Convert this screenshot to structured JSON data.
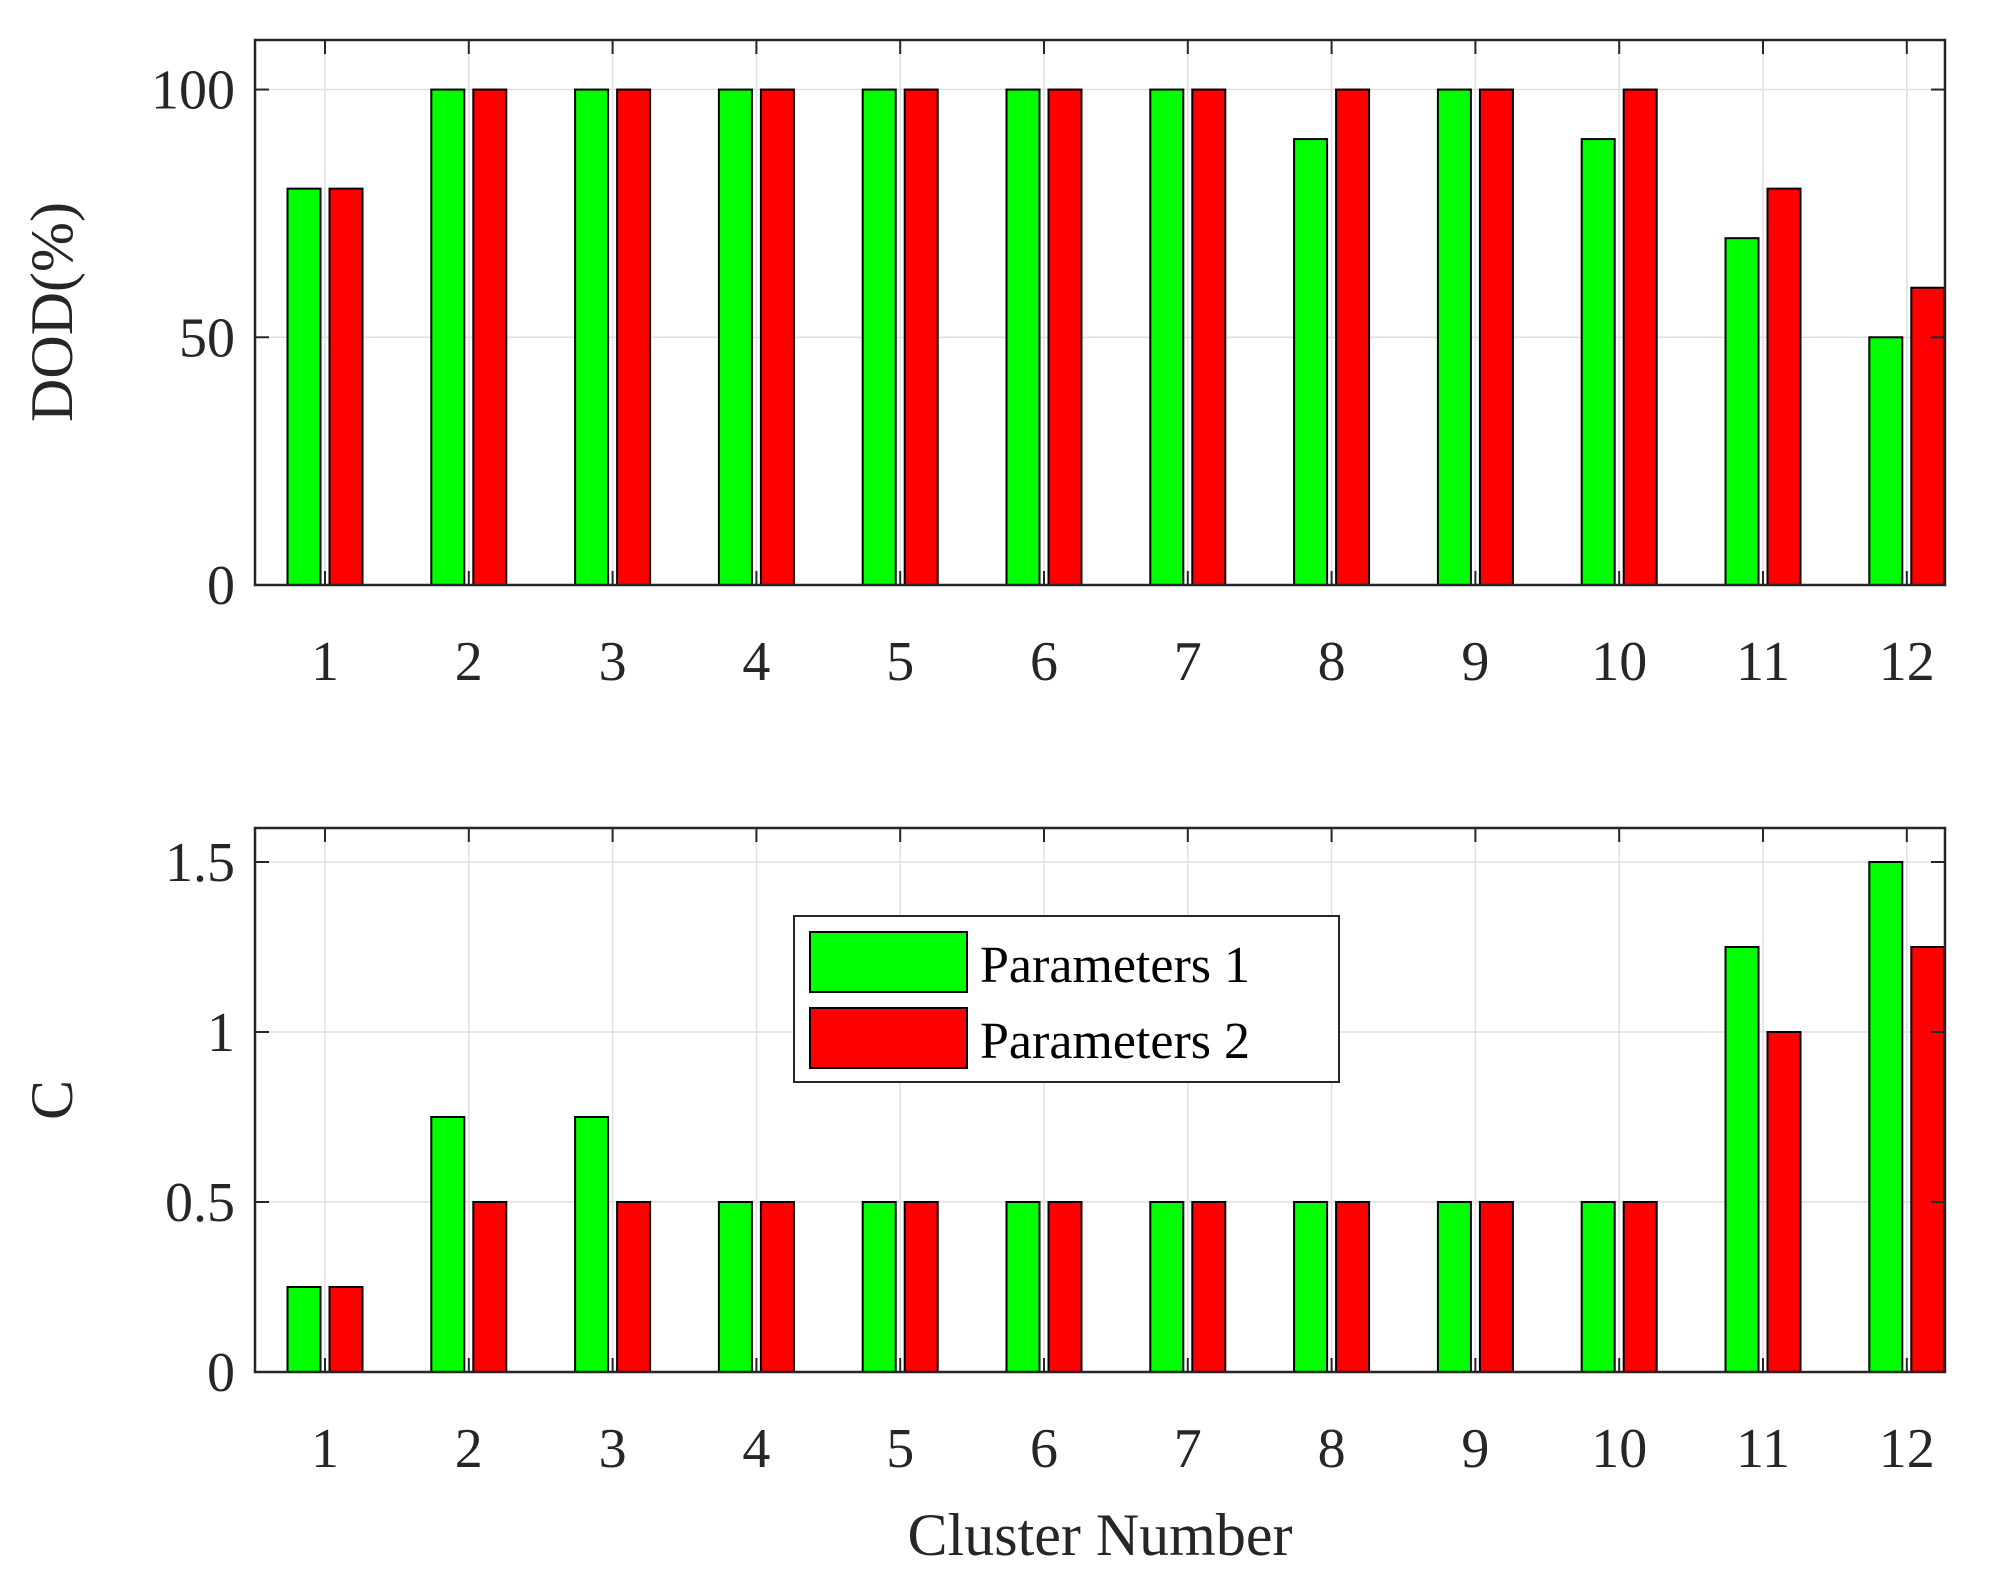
{
  "colors": {
    "series1": "#00FF00",
    "series2": "#FF0000",
    "grid": "#DFDFDF",
    "axis": "#262626"
  },
  "legend": {
    "entries": [
      "Parameters 1",
      "Parameters 2"
    ],
    "placement": "center"
  },
  "chart_data": [
    {
      "type": "bar",
      "title": "",
      "xlabel": "",
      "ylabel": "DOD(%)",
      "categories": [
        "1",
        "2",
        "3",
        "4",
        "5",
        "6",
        "7",
        "8",
        "9",
        "10",
        "11",
        "12"
      ],
      "ylim": [
        0,
        110
      ],
      "yticks": [
        0,
        50,
        100
      ],
      "ytick_labels": [
        "0",
        "50",
        "100"
      ],
      "grid": true,
      "series": [
        {
          "name": "Parameters 1",
          "values": [
            80,
            100,
            100,
            100,
            100,
            100,
            100,
            90,
            100,
            90,
            70,
            50
          ]
        },
        {
          "name": "Parameters 2",
          "values": [
            80,
            100,
            100,
            100,
            100,
            100,
            100,
            100,
            100,
            100,
            80,
            60
          ]
        }
      ]
    },
    {
      "type": "bar",
      "title": "",
      "xlabel": "Cluster Number",
      "ylabel": "C",
      "categories": [
        "1",
        "2",
        "3",
        "4",
        "5",
        "6",
        "7",
        "8",
        "9",
        "10",
        "11",
        "12"
      ],
      "ylim": [
        0,
        1.6
      ],
      "yticks": [
        0,
        0.5,
        1,
        1.5
      ],
      "ytick_labels": [
        "0",
        "0.5",
        "1",
        "1.5"
      ],
      "grid": true,
      "series": [
        {
          "name": "Parameters 1",
          "values": [
            0.25,
            0.75,
            0.75,
            0.5,
            0.5,
            0.5,
            0.5,
            0.5,
            0.5,
            0.5,
            1.25,
            1.5
          ]
        },
        {
          "name": "Parameters 2",
          "values": [
            0.25,
            0.5,
            0.5,
            0.5,
            0.5,
            0.5,
            0.5,
            0.5,
            0.5,
            0.5,
            1.0,
            1.25
          ]
        }
      ]
    }
  ]
}
